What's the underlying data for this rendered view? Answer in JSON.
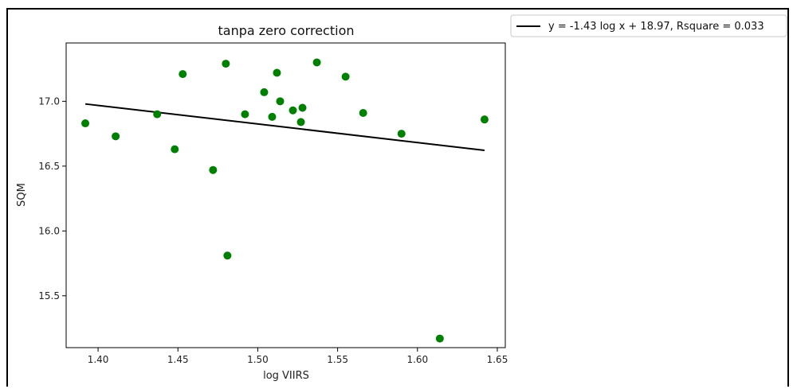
{
  "chart_data": {
    "type": "scatter",
    "title": "tanpa zero correction",
    "xlabel": "log VIIRS",
    "ylabel": "SQM",
    "xlim": [
      1.38,
      1.655
    ],
    "ylim": [
      15.1,
      17.45
    ],
    "xticks": [
      1.4,
      1.45,
      1.5,
      1.55,
      1.6,
      1.65
    ],
    "xtick_labels": [
      "1.40",
      "1.45",
      "1.50",
      "1.55",
      "1.60",
      "1.65"
    ],
    "yticks": [
      15.5,
      16.0,
      16.5,
      17.0
    ],
    "ytick_labels": [
      "15.5",
      "16.0",
      "16.5",
      "17.0"
    ],
    "grid": false,
    "legend_position": "outside-top-right",
    "series": [
      {
        "type": "scatter",
        "color": "#008000",
        "points": [
          [
            1.392,
            16.83
          ],
          [
            1.411,
            16.73
          ],
          [
            1.437,
            16.9
          ],
          [
            1.448,
            16.63
          ],
          [
            1.453,
            17.21
          ],
          [
            1.472,
            16.47
          ],
          [
            1.48,
            17.29
          ],
          [
            1.481,
            15.81
          ],
          [
            1.492,
            16.9
          ],
          [
            1.504,
            17.07
          ],
          [
            1.509,
            16.88
          ],
          [
            1.512,
            17.22
          ],
          [
            1.514,
            17.0
          ],
          [
            1.522,
            16.93
          ],
          [
            1.527,
            16.84
          ],
          [
            1.528,
            16.95
          ],
          [
            1.537,
            17.3
          ],
          [
            1.555,
            17.19
          ],
          [
            1.566,
            16.91
          ],
          [
            1.59,
            16.75
          ],
          [
            1.614,
            15.17
          ],
          [
            1.642,
            16.86
          ]
        ]
      },
      {
        "name": "y  = -1.43 log x + 18.97, Rsquare = 0.033",
        "type": "line",
        "color": "#000000",
        "slope": -1.43,
        "intercept": 18.97,
        "x_range": [
          1.392,
          1.642
        ]
      }
    ]
  }
}
